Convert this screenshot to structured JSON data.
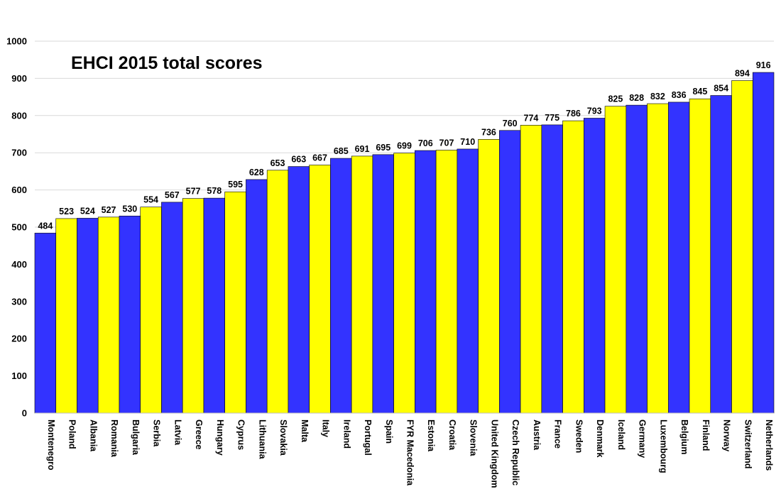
{
  "chart_data": {
    "type": "bar",
    "title": "EHCI 2015 total scores",
    "xlabel": "",
    "ylabel": "",
    "ylim": [
      0,
      1000
    ],
    "yticks": [
      0,
      100,
      200,
      300,
      400,
      500,
      600,
      700,
      800,
      900,
      1000
    ],
    "grid": true,
    "legend": "none",
    "categories": [
      "Montenegro",
      "Poland",
      "Albania",
      "Romania",
      "Bulgaria",
      "Serbia",
      "Latvia",
      "Greece",
      "Hungary",
      "Cyprus",
      "Lithuania",
      "Slovakia",
      "Malta",
      "Italy",
      "Ireland",
      "Portugal",
      "Spain",
      "FYR Macedonia",
      "Estonia",
      "Croatia",
      "Slovenia",
      "United Kingdom",
      "Czech Republic",
      "Austria",
      "France",
      "Sweden",
      "Denmark",
      "Iceland",
      "Germany",
      "Luxembourg",
      "Belgium",
      "Finland",
      "Norway",
      "Switzerland",
      "Netherlands"
    ],
    "values": [
      484,
      523,
      524,
      527,
      530,
      554,
      567,
      577,
      578,
      595,
      628,
      653,
      663,
      667,
      685,
      691,
      695,
      699,
      706,
      707,
      710,
      736,
      760,
      774,
      775,
      786,
      793,
      825,
      828,
      832,
      836,
      845,
      854,
      894,
      916
    ],
    "bar_colors": [
      "#3333ff",
      "#ffff00"
    ],
    "bar_outline": "#000000",
    "grid_color": "#d9d9d9"
  }
}
